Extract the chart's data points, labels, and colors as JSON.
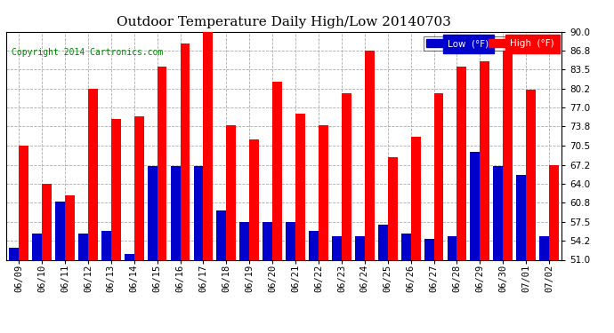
{
  "title": "Outdoor Temperature Daily High/Low 20140703",
  "copyright": "Copyright 2014 Cartronics.com",
  "legend_low": "Low  (°F)",
  "legend_high": "High  (°F)",
  "dates": [
    "06/09",
    "06/10",
    "06/11",
    "06/12",
    "06/13",
    "06/14",
    "06/15",
    "06/16",
    "06/17",
    "06/18",
    "06/19",
    "06/20",
    "06/21",
    "06/22",
    "06/23",
    "06/24",
    "06/25",
    "06/26",
    "06/27",
    "06/28",
    "06/29",
    "06/30",
    "07/01",
    "07/02"
  ],
  "high": [
    70.5,
    64.0,
    62.0,
    80.2,
    75.0,
    75.5,
    84.0,
    88.0,
    90.0,
    74.0,
    71.5,
    81.5,
    76.0,
    74.0,
    79.5,
    86.8,
    68.5,
    72.0,
    79.5,
    84.0,
    85.0,
    89.0,
    80.0,
    67.2
  ],
  "low": [
    53.0,
    55.5,
    61.0,
    55.5,
    56.0,
    52.0,
    67.0,
    67.0,
    67.0,
    59.5,
    57.5,
    57.5,
    57.5,
    56.0,
    55.0,
    55.0,
    57.0,
    55.5,
    54.5,
    55.0,
    69.5,
    67.0,
    65.5,
    55.0
  ],
  "bar_color_high": "#ff0000",
  "bar_color_low": "#0000cc",
  "background_color": "#ffffff",
  "grid_color": "#aaaaaa",
  "ylim_min": 51.0,
  "ylim_max": 90.0,
  "yticks": [
    51.0,
    54.2,
    57.5,
    60.8,
    64.0,
    67.2,
    70.5,
    73.8,
    77.0,
    80.2,
    83.5,
    86.8,
    90.0
  ],
  "title_fontsize": 11,
  "copyright_fontsize": 7,
  "tick_fontsize": 7.5,
  "bar_width": 0.42,
  "figwidth": 6.9,
  "figheight": 3.75,
  "dpi": 100
}
